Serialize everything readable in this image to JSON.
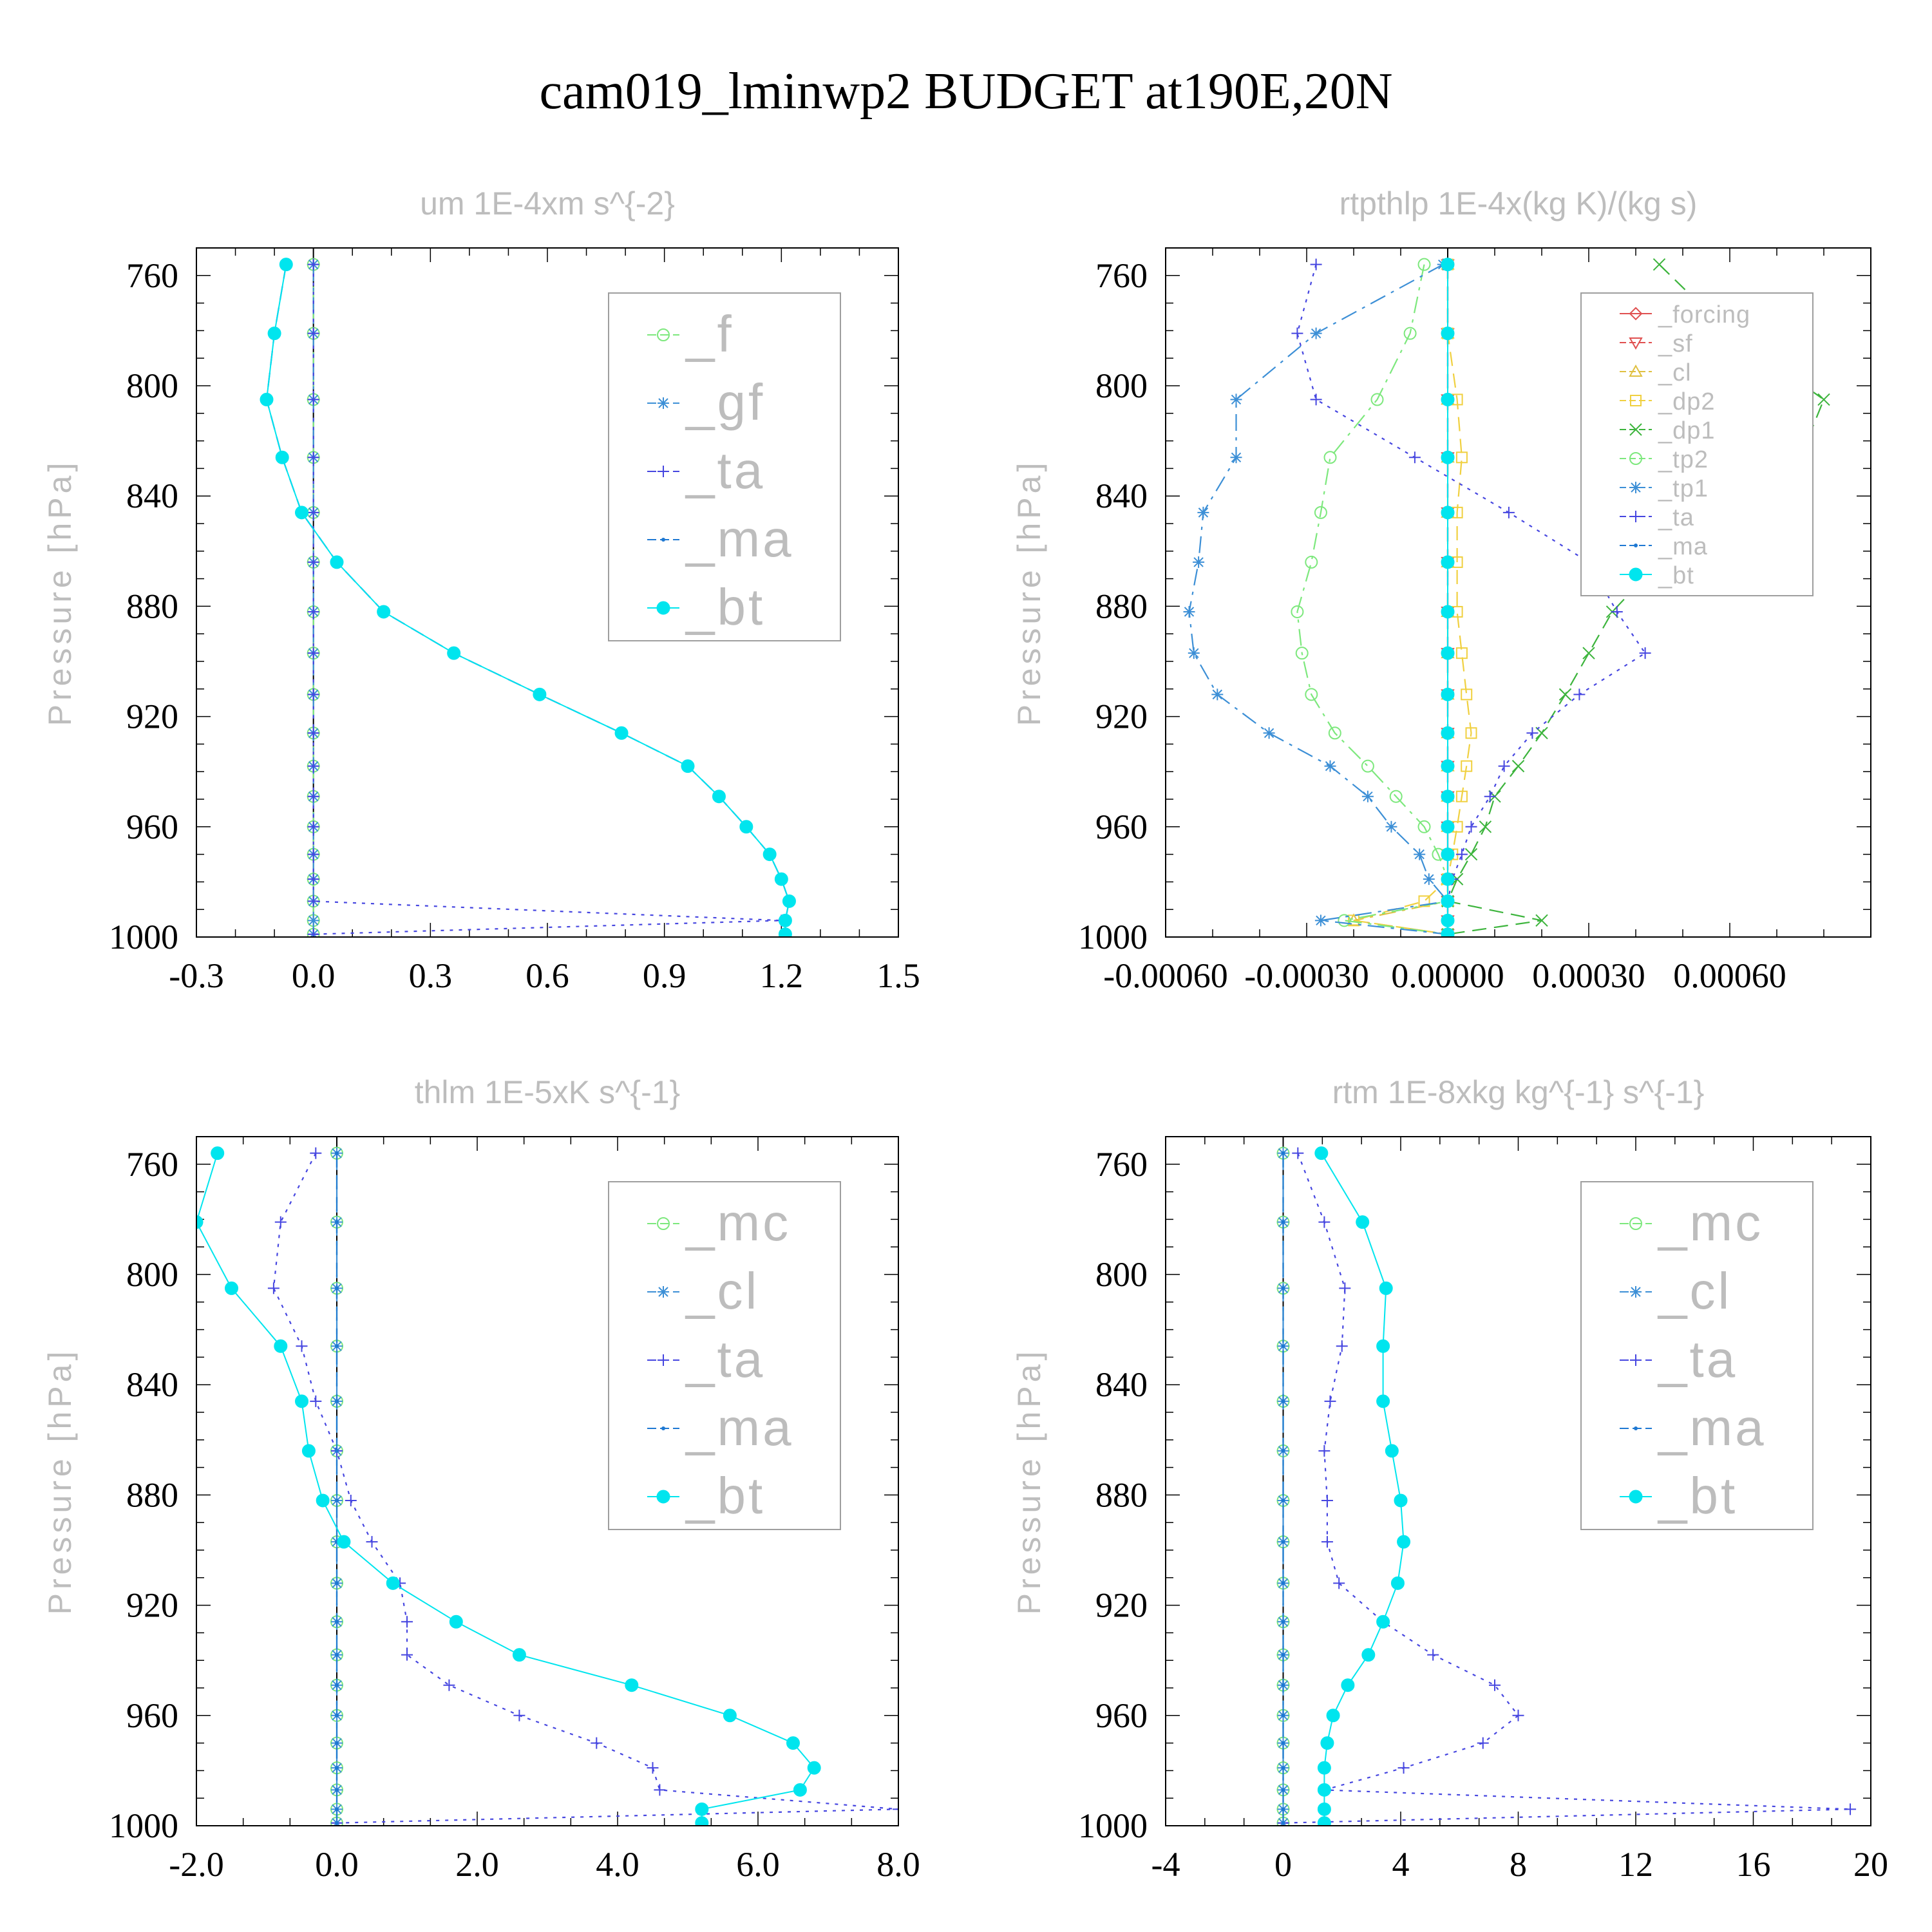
{
  "title": "cam019_lminwp2  BUDGET at190E,20N",
  "colors": {
    "f": "#7de87d",
    "gf": "#3c8fd6",
    "ta": "#4646e0",
    "ma": "#1e78d2",
    "bt": "#00e5ee",
    "mc": "#7de87d",
    "cl": "#3c8fd6",
    "forcing": "#e05050",
    "sf": "#e05050",
    "cl_r": "#e0c040",
    "dp2": "#f0d040",
    "dp1": "#3cb43c",
    "tp2": "#7de87d",
    "tp1": "#3c8fd6",
    "ta_r": "#4646e0",
    "ma_r": "#1e78d2",
    "bt_r": "#00e5ee"
  },
  "chart_data": [
    {
      "type": "line",
      "title": "um   1E-4xm s^{-2}",
      "ylabel": "Pressure [hPa]",
      "xlim": [
        -0.3,
        1.5
      ],
      "ylim": [
        1000,
        750
      ],
      "xticks": [
        -0.3,
        0.0,
        0.3,
        0.6,
        0.9,
        1.2,
        1.5
      ],
      "xtick_labels": [
        "-0.3",
        "0.0",
        "0.3",
        "0.6",
        "0.9",
        "1.2",
        "1.5"
      ],
      "yticks": [
        760,
        800,
        840,
        880,
        920,
        960,
        1000
      ],
      "ytick_labels": [
        "760",
        "800",
        "840",
        "880",
        "920",
        "960",
        "1000"
      ],
      "legend_position": "top-right",
      "pressure": [
        756,
        781,
        805,
        826,
        846,
        864,
        882,
        897,
        912,
        926,
        938,
        949,
        960,
        970,
        979,
        987,
        994,
        999
      ],
      "series": [
        {
          "name": "_f",
          "color_key": "f",
          "marker": "circle-open",
          "style": "dashed",
          "values": [
            0.0,
            0.0,
            0.0,
            0.0,
            0.0,
            0.0,
            0.0,
            0.0,
            0.0,
            0.0,
            0.0,
            0.0,
            0.0,
            0.0,
            0.0,
            0.0,
            0.0,
            0.0
          ]
        },
        {
          "name": "_gf",
          "color_key": "gf",
          "marker": "star",
          "style": "dashdot",
          "values": [
            0.0,
            0.0,
            0.0,
            0.0,
            0.0,
            0.0,
            0.0,
            0.0,
            0.0,
            0.0,
            0.0,
            0.0,
            0.0,
            0.0,
            0.0,
            0.0,
            0.0,
            0.0
          ]
        },
        {
          "name": "_ta",
          "color_key": "ta",
          "marker": "plus",
          "style": "dotted",
          "values": [
            0.0,
            0.0,
            0.0,
            0.0,
            0.0,
            0.0,
            0.0,
            0.0,
            0.0,
            0.0,
            0.0,
            0.0,
            0.0,
            0.0,
            0.0,
            0.0,
            1.2,
            0.0
          ]
        },
        {
          "name": "_ma",
          "color_key": "ma",
          "marker": "dot",
          "style": "dashed",
          "values": [
            -0.07,
            -0.1,
            -0.12,
            -0.08,
            -0.03,
            0.06,
            0.18,
            0.36,
            0.58,
            0.79,
            0.96,
            1.04,
            1.11,
            1.17,
            1.2,
            1.22,
            1.21,
            1.21
          ]
        },
        {
          "name": "_bt",
          "color_key": "bt",
          "marker": "dot-filled",
          "style": "solid",
          "values": [
            -0.07,
            -0.1,
            -0.12,
            -0.08,
            -0.03,
            0.06,
            0.18,
            0.36,
            0.58,
            0.79,
            0.96,
            1.04,
            1.11,
            1.17,
            1.2,
            1.22,
            1.21,
            1.21
          ]
        }
      ]
    },
    {
      "type": "line",
      "title": "rtpthlp   1E-4x(kg K)/(kg s)",
      "ylabel": "Pressure [hPa]",
      "xlim": [
        -0.0006,
        0.0009
      ],
      "ylim": [
        1000,
        750
      ],
      "xticks": [
        -0.0006,
        -0.0003,
        0.0,
        0.0003,
        0.0006
      ],
      "xtick_labels": [
        "-0.00060",
        "-0.00030",
        "0.00000",
        "0.00030",
        "0.00060"
      ],
      "yticks": [
        760,
        800,
        840,
        880,
        920,
        960,
        1000
      ],
      "ytick_labels": [
        "760",
        "800",
        "840",
        "880",
        "920",
        "960",
        "1000"
      ],
      "legend_position": "top-right",
      "pressure": [
        756,
        781,
        805,
        826,
        846,
        864,
        882,
        897,
        912,
        926,
        938,
        949,
        960,
        970,
        979,
        987,
        994,
        999
      ],
      "series": [
        {
          "name": "_forcing",
          "color_key": "forcing",
          "marker": "diamond",
          "style": "solid",
          "values": [
            0.0,
            0.0,
            0.0,
            0.0,
            0.0,
            0.0,
            0.0,
            0.0,
            0.0,
            0.0,
            0.0,
            0.0,
            0.0,
            0.0,
            0.0,
            0.0,
            0.0,
            0.0
          ]
        },
        {
          "name": "_sf",
          "color_key": "sf",
          "marker": "triangle-down",
          "style": "dashed",
          "values": [
            0.0,
            0.0,
            0.0,
            0.0,
            0.0,
            0.0,
            0.0,
            0.0,
            0.0,
            0.0,
            0.0,
            0.0,
            0.0,
            0.0,
            0.0,
            0.0,
            0.0,
            0.0
          ]
        },
        {
          "name": "_cl",
          "color_key": "cl_r",
          "marker": "triangle-up",
          "style": "dashdot",
          "values": [
            0.0,
            0.0,
            0.0,
            0.0,
            0.0,
            0.0,
            0.0,
            0.0,
            0.0,
            0.0,
            0.0,
            0.0,
            0.0,
            0.0,
            0.0,
            0.0,
            -0.0002,
            0.0
          ]
        },
        {
          "name": "_dp2",
          "color_key": "dp2",
          "marker": "square",
          "style": "dashed",
          "values": [
            0.0,
            0.0,
            2e-05,
            3e-05,
            2e-05,
            2e-05,
            2e-05,
            3e-05,
            4e-05,
            5e-05,
            4e-05,
            3e-05,
            2e-05,
            1e-05,
            0.0,
            -5e-05,
            -0.0002,
            0.0
          ]
        },
        {
          "name": "_dp1",
          "color_key": "dp1",
          "marker": "x",
          "style": "dashed",
          "values": [
            0.00045,
            0.0006,
            0.0008,
            0.00075,
            0.00062,
            0.00045,
            0.00035,
            0.0003,
            0.00025,
            0.0002,
            0.00015,
            0.0001,
            8e-05,
            5e-05,
            2e-05,
            0.0,
            0.0002,
            0.0
          ]
        },
        {
          "name": "_tp2",
          "color_key": "tp2",
          "marker": "circle-open",
          "style": "dashdot",
          "values": [
            -5e-05,
            -8e-05,
            -0.00015,
            -0.00025,
            -0.00027,
            -0.00029,
            -0.00032,
            -0.00031,
            -0.00029,
            -0.00024,
            -0.00017,
            -0.00011,
            -5e-05,
            -2e-05,
            0.0,
            0.0,
            -0.00022,
            0.0
          ]
        },
        {
          "name": "_tp1",
          "color_key": "tp1",
          "marker": "star",
          "style": "dashdot",
          "values": [
            -1e-05,
            -0.00028,
            -0.00045,
            -0.00045,
            -0.00052,
            -0.00053,
            -0.00055,
            -0.00054,
            -0.00049,
            -0.00038,
            -0.00025,
            -0.00017,
            -0.00012,
            -6e-05,
            -4e-05,
            0.0,
            -0.00027,
            0.0
          ]
        },
        {
          "name": "_ta",
          "color_key": "ta_r",
          "marker": "plus",
          "style": "dotted",
          "values": [
            -0.00028,
            -0.00032,
            -0.00028,
            -7e-05,
            0.00013,
            0.0003,
            0.00036,
            0.00042,
            0.00028,
            0.00018,
            0.00012,
            9e-05,
            5e-05,
            3e-05,
            1e-05,
            0.0,
            0.0,
            0.0
          ]
        },
        {
          "name": "_ma",
          "color_key": "ma_r",
          "marker": "dot",
          "style": "dashed",
          "values": [
            0.0,
            0.0,
            0.0,
            0.0,
            0.0,
            0.0,
            0.0,
            0.0,
            0.0,
            0.0,
            0.0,
            0.0,
            0.0,
            0.0,
            0.0,
            0.0,
            0.0,
            0.0
          ]
        },
        {
          "name": "_bt",
          "color_key": "bt_r",
          "marker": "dot-filled",
          "style": "solid",
          "values": [
            0.0,
            0.0,
            0.0,
            0.0,
            0.0,
            0.0,
            0.0,
            0.0,
            0.0,
            0.0,
            0.0,
            0.0,
            0.0,
            0.0,
            0.0,
            0.0,
            0.0,
            0.0
          ]
        }
      ]
    },
    {
      "type": "line",
      "title": "thlm   1E-5xK s^{-1}",
      "ylabel": "Pressure [hPa]",
      "xlim": [
        -2.0,
        8.0
      ],
      "ylim": [
        1000,
        750
      ],
      "xticks": [
        -2.0,
        0.0,
        2.0,
        4.0,
        6.0,
        8.0
      ],
      "xtick_labels": [
        "-2.0",
        "0.0",
        "2.0",
        "4.0",
        "6.0",
        "8.0"
      ],
      "yticks": [
        760,
        800,
        840,
        880,
        920,
        960,
        1000
      ],
      "ytick_labels": [
        "760",
        "800",
        "840",
        "880",
        "920",
        "960",
        "1000"
      ],
      "legend_position": "top-right",
      "pressure": [
        756,
        781,
        805,
        826,
        846,
        864,
        882,
        897,
        912,
        926,
        938,
        949,
        960,
        970,
        979,
        987,
        994,
        999
      ],
      "series": [
        {
          "name": "_mc",
          "color_key": "mc",
          "marker": "circle-open",
          "style": "dashed",
          "values": [
            0.0,
            0.0,
            0.0,
            0.0,
            0.0,
            0.0,
            0.0,
            0.0,
            0.0,
            0.0,
            0.0,
            0.0,
            0.0,
            0.0,
            0.0,
            0.0,
            0.0,
            0.0
          ]
        },
        {
          "name": "_cl",
          "color_key": "cl",
          "marker": "star",
          "style": "dashdot",
          "values": [
            0.0,
            0.0,
            0.0,
            0.0,
            0.0,
            0.0,
            0.0,
            0.0,
            0.0,
            0.0,
            0.0,
            0.0,
            0.0,
            0.0,
            0.0,
            0.0,
            0.0,
            0.0
          ]
        },
        {
          "name": "_ta",
          "color_key": "ta",
          "marker": "plus",
          "style": "dotted",
          "values": [
            -0.3,
            -0.8,
            -0.9,
            -0.5,
            -0.3,
            0.0,
            0.2,
            0.5,
            0.9,
            1.0,
            1.0,
            1.6,
            2.6,
            3.7,
            4.5,
            4.6,
            8.0,
            0.0
          ]
        },
        {
          "name": "_ma",
          "color_key": "ma",
          "marker": "dot",
          "style": "dashed",
          "values": [
            0.0,
            0.0,
            0.0,
            0.0,
            0.0,
            0.0,
            0.0,
            0.0,
            0.0,
            0.0,
            0.0,
            0.0,
            0.0,
            0.0,
            0.0,
            0.0,
            0.0,
            0.0
          ]
        },
        {
          "name": "_bt",
          "color_key": "bt",
          "marker": "dot-filled",
          "style": "solid",
          "values": [
            -1.7,
            -2.0,
            -1.5,
            -0.8,
            -0.5,
            -0.4,
            -0.2,
            0.1,
            0.8,
            1.7,
            2.6,
            4.2,
            5.6,
            6.5,
            6.8,
            6.6,
            5.2,
            5.2
          ]
        }
      ]
    },
    {
      "type": "line",
      "title": "rtm   1E-8xkg kg^{-1} s^{-1}",
      "ylabel": "Pressure [hPa]",
      "xlim": [
        -4,
        20
      ],
      "ylim": [
        1000,
        750
      ],
      "xticks": [
        -4,
        0,
        4,
        8,
        12,
        16,
        20
      ],
      "xtick_labels": [
        "-4",
        "0",
        "4",
        "8",
        "12",
        "16",
        "20"
      ],
      "yticks": [
        760,
        800,
        840,
        880,
        920,
        960,
        1000
      ],
      "ytick_labels": [
        "760",
        "800",
        "840",
        "880",
        "920",
        "960",
        "1000"
      ],
      "legend_position": "top-right",
      "pressure": [
        756,
        781,
        805,
        826,
        846,
        864,
        882,
        897,
        912,
        926,
        938,
        949,
        960,
        970,
        979,
        987,
        994,
        999
      ],
      "series": [
        {
          "name": "_mc",
          "color_key": "mc",
          "marker": "circle-open",
          "style": "dashed",
          "values": [
            0.0,
            0.0,
            0.0,
            0.0,
            0.0,
            0.0,
            0.0,
            0.0,
            0.0,
            0.0,
            0.0,
            0.0,
            0.0,
            0.0,
            0.0,
            0.0,
            0.0,
            0.0
          ]
        },
        {
          "name": "_cl",
          "color_key": "cl",
          "marker": "star",
          "style": "dashdot",
          "values": [
            0.0,
            0.0,
            0.0,
            0.0,
            0.0,
            0.0,
            0.0,
            0.0,
            0.0,
            0.0,
            0.0,
            0.0,
            0.0,
            0.0,
            0.0,
            0.0,
            0.0,
            0.0
          ]
        },
        {
          "name": "_ta",
          "color_key": "ta",
          "marker": "plus",
          "style": "dotted",
          "values": [
            0.5,
            1.4,
            2.1,
            2.0,
            1.6,
            1.4,
            1.5,
            1.5,
            1.9,
            3.4,
            5.1,
            7.2,
            8.0,
            6.8,
            4.1,
            1.4,
            19.3,
            0.0
          ]
        },
        {
          "name": "_ma",
          "color_key": "ma",
          "marker": "dot",
          "style": "dashed",
          "values": [
            0.0,
            0.0,
            0.0,
            0.0,
            0.0,
            0.0,
            0.0,
            0.0,
            0.0,
            0.0,
            0.0,
            0.0,
            0.0,
            0.0,
            0.0,
            0.0,
            0.0,
            0.0
          ]
        },
        {
          "name": "_bt",
          "color_key": "bt",
          "marker": "dot-filled",
          "style": "solid",
          "values": [
            1.3,
            2.7,
            3.5,
            3.4,
            3.4,
            3.7,
            4.0,
            4.1,
            3.9,
            3.4,
            2.9,
            2.2,
            1.7,
            1.5,
            1.4,
            1.4,
            1.4,
            1.4
          ]
        }
      ]
    }
  ]
}
